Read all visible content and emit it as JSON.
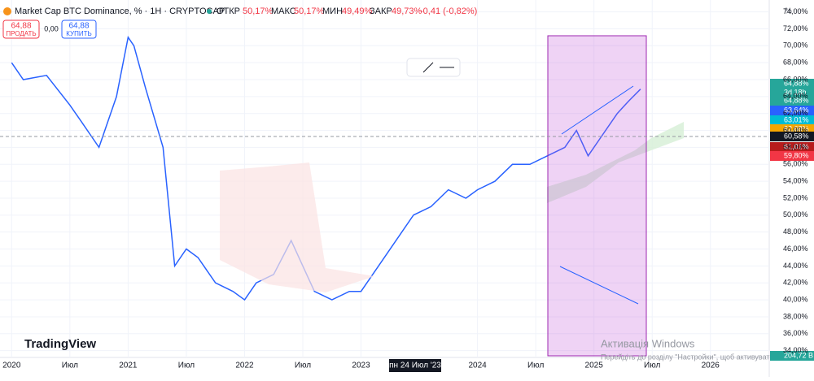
{
  "header": {
    "symbol": "Market Cap BTC Dominance, % · 1H · CRYPTOCAP",
    "open_label": "ОТКР",
    "open": "50,17%",
    "high_label": "МАКС",
    "high": "50,17%",
    "low_label": "МИН",
    "low": "49,49%",
    "close_label": "ЗАКР",
    "close": "49,73%",
    "change": "-0,41 (-0,82%)"
  },
  "trade": {
    "sell_price": "64,88",
    "sell_label": "ПРОДАТЬ",
    "spread": "0,00",
    "buy_price": "64,88",
    "buy_label": "КУПИТЬ"
  },
  "axis_unit": "%",
  "crosshair_date": "пн 24 Июл '23",
  "price_tags": [
    "64,88%",
    "3d 18h",
    "64,88%",
    "63,64%",
    "63,01%",
    "62,68%",
    "60,58%",
    "61,01%",
    "59,80%",
    "204,72 B"
  ],
  "logo": "TradingView",
  "watermark": [
    "Активація Windows",
    "Перейдіть до розділу \"Настройки\", щоб активувати Windows."
  ],
  "chart_data": {
    "type": "line",
    "x": [
      2020.0,
      2020.1,
      2020.3,
      2020.5,
      2020.6,
      2020.75,
      2020.9,
      2021.0,
      2021.05,
      2021.15,
      2021.3,
      2021.4,
      2021.5,
      2021.6,
      2021.75,
      2021.9,
      2022.0,
      2022.1,
      2022.25,
      2022.4,
      2022.5,
      2022.6,
      2022.75,
      2022.9,
      2023.0,
      2023.15,
      2023.3,
      2023.45,
      2023.6,
      2023.75,
      2023.9,
      2024.0,
      2024.15,
      2024.3,
      2024.45,
      2024.6,
      2024.75,
      2024.85,
      2024.95,
      2025.05,
      2025.2,
      2025.3,
      2025.4
    ],
    "values": [
      68,
      66,
      66.5,
      63,
      61,
      58,
      64,
      71,
      70,
      65,
      58,
      44,
      46,
      45,
      42,
      41,
      40,
      42,
      43,
      47,
      44,
      41,
      40,
      41,
      41,
      44,
      47,
      50,
      51,
      53,
      52,
      53,
      54,
      56,
      56,
      57,
      58,
      60,
      57,
      59,
      62,
      63.5,
      64.88
    ],
    "color": "#2962ff",
    "xlim": [
      2019.9,
      2026.47
    ],
    "ylim": [
      33.2,
      75.4
    ],
    "xticks": [
      2020,
      {
        "value": 2020.5,
        "label": "Июл"
      },
      2021,
      {
        "value": 2021.5,
        "label": "Июл"
      },
      2022,
      {
        "value": 2022.5,
        "label": "Июл"
      },
      2023,
      2024,
      {
        "value": 2024.5,
        "label": "Июл"
      },
      2025,
      {
        "value": 2025.5,
        "label": "Июл"
      },
      2026
    ],
    "yticks": [
      {
        "value": 74,
        "label": "74,00%"
      },
      {
        "value": 72,
        "label": "72,00%"
      },
      {
        "value": 70,
        "label": "70,00%"
      },
      {
        "value": 68,
        "label": "68,00%"
      },
      {
        "value": 66,
        "label": "66,00%"
      },
      {
        "value": 64,
        "label": "64,00%"
      },
      {
        "value": 62,
        "label": "62,00%"
      },
      {
        "value": 60,
        "label": "60,00%"
      },
      {
        "value": 58,
        "label": "58,00%"
      },
      {
        "value": 56,
        "label": "56,00%"
      },
      {
        "value": 54,
        "label": "54,00%"
      },
      {
        "value": 52,
        "label": "52,00%"
      },
      {
        "value": 50,
        "label": "50,00%"
      },
      {
        "value": 48,
        "label": "48,00%"
      },
      {
        "value": 46,
        "label": "46,00%"
      },
      {
        "value": 44,
        "label": "44,00%"
      },
      {
        "value": 42,
        "label": "42,00%"
      },
      {
        "value": 40,
        "label": "40,00%"
      },
      {
        "value": 38,
        "label": "38,00%"
      },
      {
        "value": 36,
        "label": "36,00%"
      },
      {
        "value": 34,
        "label": "34,00%"
      }
    ],
    "grid": true
  }
}
